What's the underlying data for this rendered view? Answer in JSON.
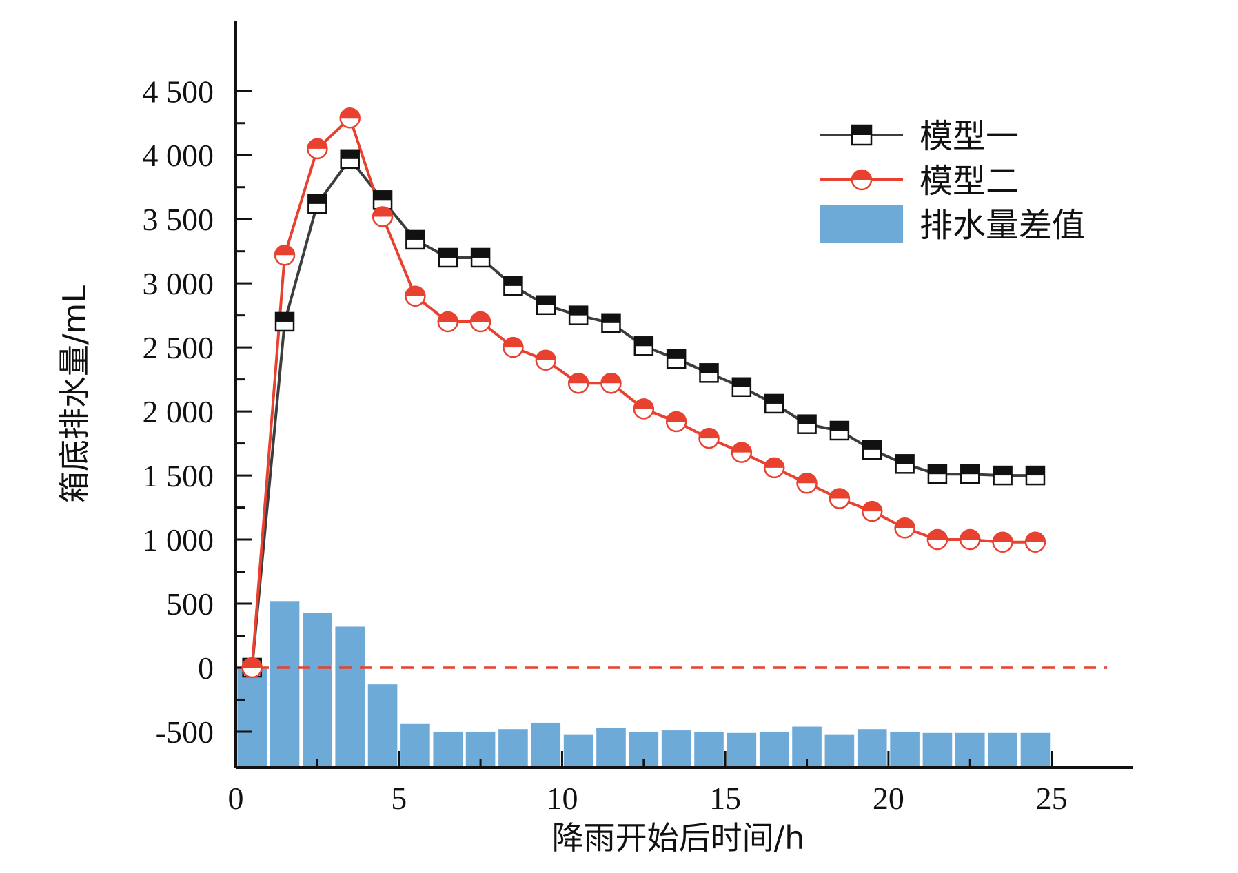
{
  "chart_data": {
    "type": "line",
    "title": "",
    "xlabel": "降雨开始后时间/h",
    "ylabel": "箱底排水量/mL",
    "xlim": [
      0,
      27.5
    ],
    "ylim": [
      -780,
      5050
    ],
    "x_ticks": [
      0,
      5,
      10,
      15,
      20,
      25
    ],
    "x_tick_labels": [
      "0",
      "5",
      "10",
      "15",
      "20",
      "25"
    ],
    "y_ticks": [
      -500,
      0,
      500,
      1000,
      1500,
      2000,
      2500,
      3000,
      3500,
      4000,
      4500
    ],
    "y_tick_labels": [
      "-500",
      "0",
      "500",
      "1 000",
      "1 500",
      "2 000",
      "2 500",
      "3 000",
      "3 500",
      "4 000",
      "4 500"
    ],
    "grid": false,
    "legend_position": "top-right",
    "series": [
      {
        "name": "模型一",
        "kind": "line",
        "color": "#3d3d3d",
        "marker": "half-filled-square",
        "x": [
          0.5,
          1.5,
          2.5,
          3.5,
          4.5,
          5.5,
          6.5,
          7.5,
          8.5,
          9.5,
          10.5,
          11.5,
          12.5,
          13.5,
          14.5,
          15.5,
          16.5,
          17.5,
          18.5,
          19.5,
          20.5,
          21.5,
          22.5,
          23.5,
          24.5
        ],
        "values": [
          0,
          2700,
          3620,
          3970,
          3650,
          3340,
          3200,
          3200,
          2980,
          2830,
          2750,
          2690,
          2510,
          2410,
          2300,
          2190,
          2060,
          1900,
          1850,
          1700,
          1590,
          1510,
          1510,
          1500,
          1500
        ]
      },
      {
        "name": "模型二",
        "kind": "line",
        "color": "#e8412f",
        "marker": "half-filled-circle",
        "x": [
          0.5,
          1.5,
          2.5,
          3.5,
          4.5,
          5.5,
          6.5,
          7.5,
          8.5,
          9.5,
          10.5,
          11.5,
          12.5,
          13.5,
          14.5,
          15.5,
          16.5,
          17.5,
          18.5,
          19.5,
          20.5,
          21.5,
          22.5,
          23.5,
          24.5
        ],
        "values": [
          0,
          3220,
          4050,
          4290,
          3520,
          2900,
          2700,
          2700,
          2500,
          2400,
          2220,
          2220,
          2020,
          1920,
          1790,
          1680,
          1560,
          1440,
          1320,
          1220,
          1090,
          1000,
          1000,
          980,
          980
        ]
      },
      {
        "name": "排水量差值",
        "kind": "bar",
        "color": "#6eaad8",
        "x": [
          0.5,
          1.5,
          2.5,
          3.5,
          4.5,
          5.5,
          6.5,
          7.5,
          8.5,
          9.5,
          10.5,
          11.5,
          12.5,
          13.5,
          14.5,
          15.5,
          16.5,
          17.5,
          18.5,
          19.5,
          20.5,
          21.5,
          22.5,
          23.5,
          24.5
        ],
        "values": [
          0,
          520,
          430,
          320,
          -130,
          -440,
          -500,
          -500,
          -480,
          -430,
          -520,
          -470,
          -500,
          -490,
          -500,
          -510,
          -500,
          -460,
          -520,
          -480,
          -500,
          -510,
          -510,
          -510,
          -510
        ]
      }
    ],
    "reference_line": {
      "y": 0,
      "style": "dashed",
      "color": "#e8412f"
    }
  }
}
